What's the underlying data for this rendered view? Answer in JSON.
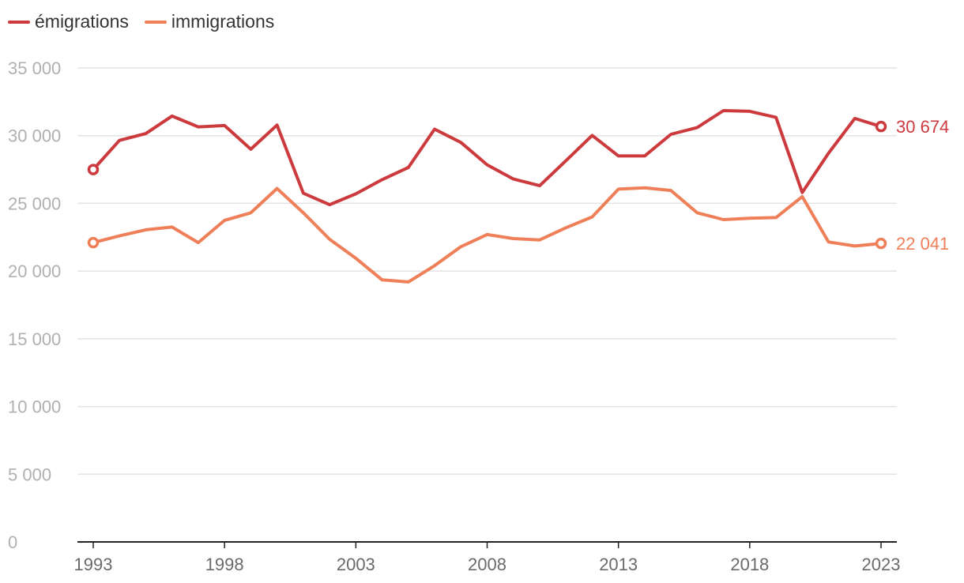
{
  "chart_data": {
    "type": "line",
    "title": "",
    "xlabel": "",
    "ylabel": "",
    "ylim": [
      0,
      35000
    ],
    "xlim": [
      1993,
      2023
    ],
    "y_ticks": [
      0,
      5000,
      10000,
      15000,
      20000,
      25000,
      30000,
      35000
    ],
    "y_tick_labels": [
      "0",
      "5 000",
      "10 000",
      "15 000",
      "20 000",
      "25 000",
      "30 000",
      "35 000"
    ],
    "x_ticks": [
      1993,
      1998,
      2003,
      2008,
      2013,
      2018,
      2023
    ],
    "x_tick_labels": [
      "1993",
      "1998",
      "2003",
      "2008",
      "2013",
      "2018",
      "2023"
    ],
    "legend_position": "top-left",
    "x": [
      1993,
      1994,
      1995,
      1996,
      1997,
      1998,
      1999,
      2000,
      2001,
      2002,
      2003,
      2004,
      2005,
      2006,
      2007,
      2008,
      2009,
      2010,
      2011,
      2012,
      2013,
      2014,
      2015,
      2016,
      2017,
      2018,
      2019,
      2020,
      2021,
      2022,
      2023
    ],
    "series": [
      {
        "name": "émigrations",
        "color": "#cc3a3d",
        "end_label": "30 674",
        "values": [
          27500,
          29650,
          30150,
          31450,
          30650,
          30750,
          29000,
          30780,
          25750,
          24900,
          25700,
          26750,
          27650,
          30480,
          29500,
          27850,
          26800,
          26300,
          28150,
          30020,
          28500,
          28500,
          30100,
          30600,
          31850,
          31800,
          31350,
          25800,
          28700,
          31270,
          30674
        ]
      },
      {
        "name": "immigrations",
        "color": "#ee7f58",
        "end_label": "22 041",
        "values": [
          22100,
          22600,
          23050,
          23250,
          22100,
          23750,
          24300,
          26100,
          24300,
          22350,
          20950,
          19350,
          19200,
          20400,
          21800,
          22700,
          22400,
          22300,
          23200,
          24000,
          26050,
          26150,
          25950,
          24300,
          23800,
          23900,
          23950,
          25500,
          22150,
          21850,
          22041
        ]
      }
    ]
  }
}
